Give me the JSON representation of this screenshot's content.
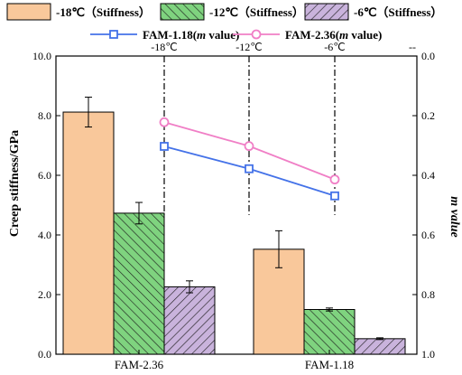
{
  "chart_data": {
    "type": "bar",
    "title": "",
    "categories": [
      "FAM-2.36",
      "FAM-1.18"
    ],
    "bar_series": [
      {
        "name": "-18℃（Stiffness）",
        "values": [
          8.12,
          3.52
        ],
        "errors": [
          0.5,
          0.62
        ],
        "color": "#f9c89b",
        "pattern": "none"
      },
      {
        "name": "-12℃（Stiffness）",
        "values": [
          4.73,
          1.5
        ],
        "errors": [
          0.36,
          0.05
        ],
        "color": "#7fd37f",
        "pattern": "forward-hatch"
      },
      {
        "name": "-6℃（Stiffness）",
        "values": [
          2.26,
          0.52
        ],
        "errors": [
          0.2,
          0.03
        ],
        "color": "#c9b3dc",
        "pattern": "backward-hatch"
      }
    ],
    "line_series": [
      {
        "name": "FAM-1.18(m value)",
        "x": [
          "-18℃",
          "-12℃",
          "-6℃"
        ],
        "values": [
          0.303,
          0.378,
          0.469
        ],
        "color": "#4472e8",
        "marker": "square"
      },
      {
        "name": "FAM-2.36(m value)",
        "x": [
          "-18℃",
          "-12℃",
          "-6℃"
        ],
        "values": [
          0.222,
          0.302,
          0.414
        ],
        "color": "#f07fc6",
        "marker": "circle"
      }
    ],
    "ylabel": "Creep stiffness/GPa",
    "y2label": "m value",
    "ylim": [
      0,
      10
    ],
    "y2lim": [
      0,
      1
    ],
    "y2_inverted": true,
    "yticks": [
      "0.0",
      "2.0",
      "4.0",
      "6.0",
      "8.0",
      "10.0"
    ],
    "y2ticks": [
      "0.0",
      "0.2",
      "0.4",
      "0.6",
      "0.8",
      "1.0"
    ],
    "top_labels": [
      "-18℃",
      "-12℃",
      "-6℃",
      "--"
    ],
    "legend_position": "top"
  }
}
